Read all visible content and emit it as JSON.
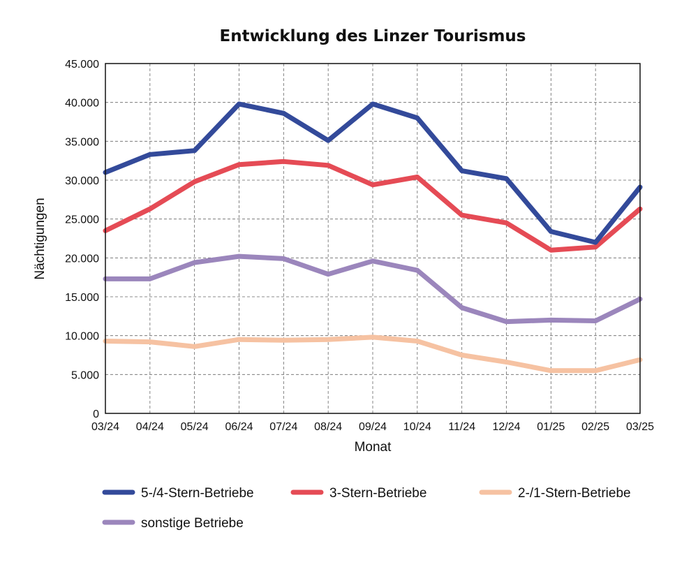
{
  "chart_data": {
    "type": "line",
    "title": "Entwicklung des Linzer Tourismus",
    "xlabel": "Monat",
    "ylabel": "Nächtigungen",
    "categories": [
      "03/24",
      "04/24",
      "05/24",
      "06/24",
      "07/24",
      "08/24",
      "09/24",
      "10/24",
      "11/24",
      "12/24",
      "01/25",
      "02/25",
      "03/25"
    ],
    "ylim": [
      0,
      45000
    ],
    "yticks": [
      0,
      5000,
      10000,
      15000,
      20000,
      25000,
      30000,
      35000,
      40000,
      45000
    ],
    "ytick_labels": [
      "0",
      "5.000",
      "10.000",
      "15.000",
      "20.000",
      "25.000",
      "30.000",
      "35.000",
      "40.000",
      "45.000"
    ],
    "grid": true,
    "legend_position": "bottom",
    "series": [
      {
        "name": "5-/4-Stern-Betriebe",
        "color": "#334A9A",
        "values": [
          31000,
          33300,
          33800,
          39800,
          38600,
          35100,
          39800,
          38000,
          31200,
          30200,
          23400,
          22000,
          29100
        ]
      },
      {
        "name": "3-Stern-Betriebe",
        "color": "#E54B55",
        "values": [
          23500,
          26300,
          29800,
          32000,
          32400,
          31900,
          29400,
          30400,
          25500,
          24500,
          21000,
          21400,
          26300
        ]
      },
      {
        "name": "2-/1-Stern-Betriebe",
        "color": "#F6C2A2",
        "values": [
          9300,
          9200,
          8600,
          9500,
          9400,
          9500,
          9800,
          9300,
          7500,
          6600,
          5500,
          5500,
          6900
        ]
      },
      {
        "name": "sonstige Betriebe",
        "color": "#9B86BC",
        "values": [
          17300,
          17300,
          19400,
          20200,
          19900,
          17900,
          19600,
          18400,
          13600,
          11800,
          12000,
          11900,
          14700
        ]
      }
    ]
  }
}
